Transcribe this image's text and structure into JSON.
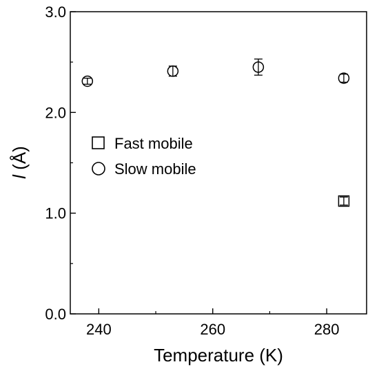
{
  "chart_data": {
    "type": "scatter",
    "xlabel": "Temperature (K)",
    "ylabel_italic": "l",
    "ylabel_rest": " (Å)",
    "xlim": [
      235,
      287
    ],
    "ylim": [
      0,
      3
    ],
    "x_ticks": [
      240,
      260,
      280
    ],
    "x_tick_labels": [
      "240",
      "260",
      "280"
    ],
    "y_ticks": [
      0,
      1,
      2,
      3
    ],
    "y_tick_labels": [
      "0.0",
      "1.0",
      "2.0",
      "3.0"
    ],
    "grid": false,
    "legend_position": "left-center",
    "series": [
      {
        "name": "Fast mobile",
        "marker": "square",
        "points": [
          {
            "x": 283,
            "y": 1.12,
            "err": 0.04
          }
        ]
      },
      {
        "name": "Slow mobile",
        "marker": "circle",
        "points": [
          {
            "x": 238,
            "y": 2.31,
            "err": 0.03
          },
          {
            "x": 253,
            "y": 2.41,
            "err": 0.05
          },
          {
            "x": 268,
            "y": 2.45,
            "err": 0.08
          },
          {
            "x": 283,
            "y": 2.34,
            "err": 0.04
          }
        ]
      }
    ]
  }
}
